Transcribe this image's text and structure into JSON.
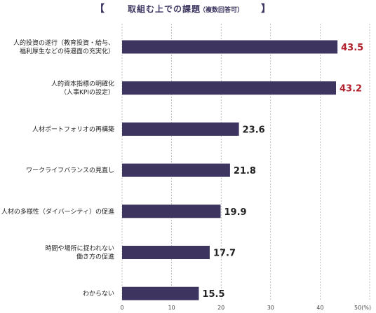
{
  "chart_data": {
    "type": "bar",
    "orientation": "horizontal",
    "title": "取組む上での課題",
    "subtitle": "（複数回答可）",
    "title_open": "【",
    "title_close": "】",
    "categories": [
      [
        "人的投資の遂行（教育投資・給与、",
        "福利厚生などの待遇面の充実化）"
      ],
      [
        "人的資本指標の明確化",
        "（人事KPIの設定）"
      ],
      [
        "人材ポートフォリオの再構築"
      ],
      [
        "ワークライフバランスの見直し"
      ],
      [
        "人材の多様性（ダイバーシティ）の促進"
      ],
      [
        "時間や場所に捉われない",
        "働き方の促進"
      ],
      [
        "わからない"
      ]
    ],
    "values": [
      43.5,
      43.2,
      23.6,
      21.8,
      19.9,
      17.7,
      15.5
    ],
    "value_labels": [
      "43.5",
      "43.2",
      "23.6",
      "21.8",
      "19.9",
      "17.7",
      "15.5"
    ],
    "highlight_count": 2,
    "xlim": [
      0,
      50
    ],
    "ticks": [
      "0",
      "10",
      "20",
      "30",
      "40",
      "50(%)"
    ],
    "tick_values": [
      0,
      10,
      20,
      30,
      40,
      50
    ],
    "grid": true,
    "colors": {
      "bar": "#3d3560",
      "highlight_label": "#b01e2a",
      "label": "#222222"
    }
  }
}
